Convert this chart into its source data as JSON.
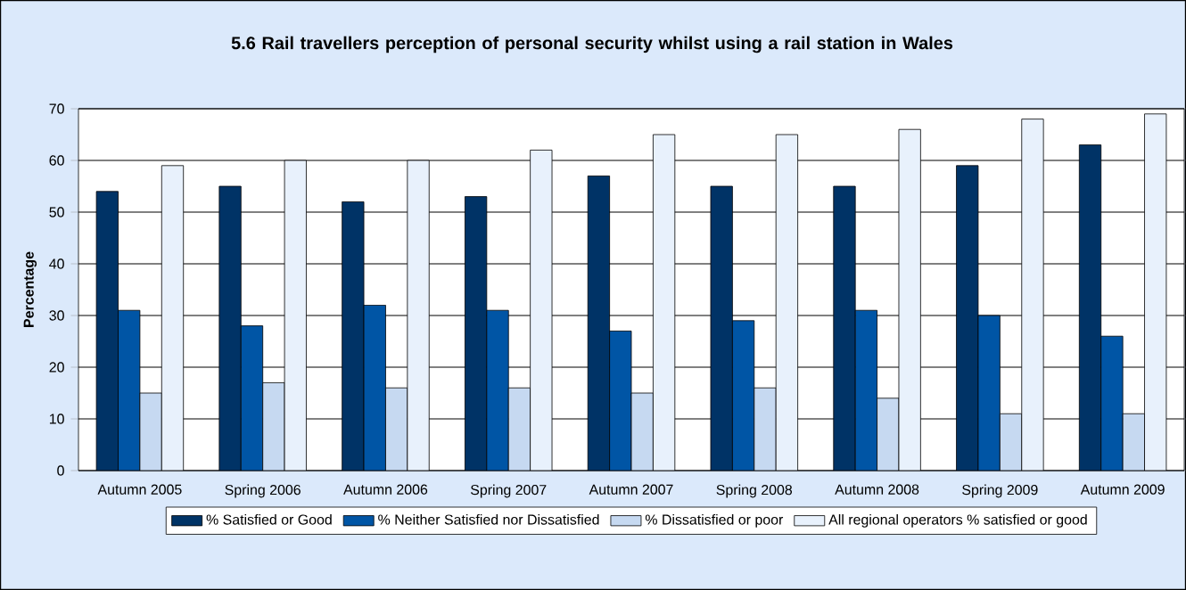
{
  "chart_data": {
    "type": "bar",
    "title": "5.6 Rail travellers perception of personal security whilst using a rail station in Wales",
    "ylabel": "Percentage",
    "categories": [
      "Autumn 2005",
      "Spring 2006",
      "Autumn 2006",
      "Spring 2007",
      "Autumn 2007",
      "Spring 2008",
      "Autumn 2008",
      "Spring 2009",
      "Autumn 2009"
    ],
    "series": [
      {
        "name": "% Satisfied or Good",
        "color": "#003366",
        "values": [
          54,
          55,
          52,
          53,
          57,
          55,
          55,
          59,
          63
        ]
      },
      {
        "name": "% Neither Satisfied nor Dissatisfied",
        "color": "#0055a5",
        "values": [
          31,
          28,
          32,
          31,
          27,
          29,
          31,
          30,
          26
        ]
      },
      {
        "name": "% Dissatisfied or poor",
        "color": "#c6d9f1",
        "values": [
          15,
          17,
          16,
          16,
          15,
          16,
          14,
          11,
          11
        ]
      },
      {
        "name": "All regional operators % satisfied or good",
        "color": "#e8f1fc",
        "values": [
          59,
          60,
          60,
          62,
          65,
          65,
          66,
          68,
          69
        ]
      }
    ],
    "ylim": [
      0,
      70
    ],
    "yticks": [
      0,
      10,
      20,
      30,
      40,
      50,
      60,
      70
    ],
    "grid": "y",
    "legend": "bottom"
  }
}
